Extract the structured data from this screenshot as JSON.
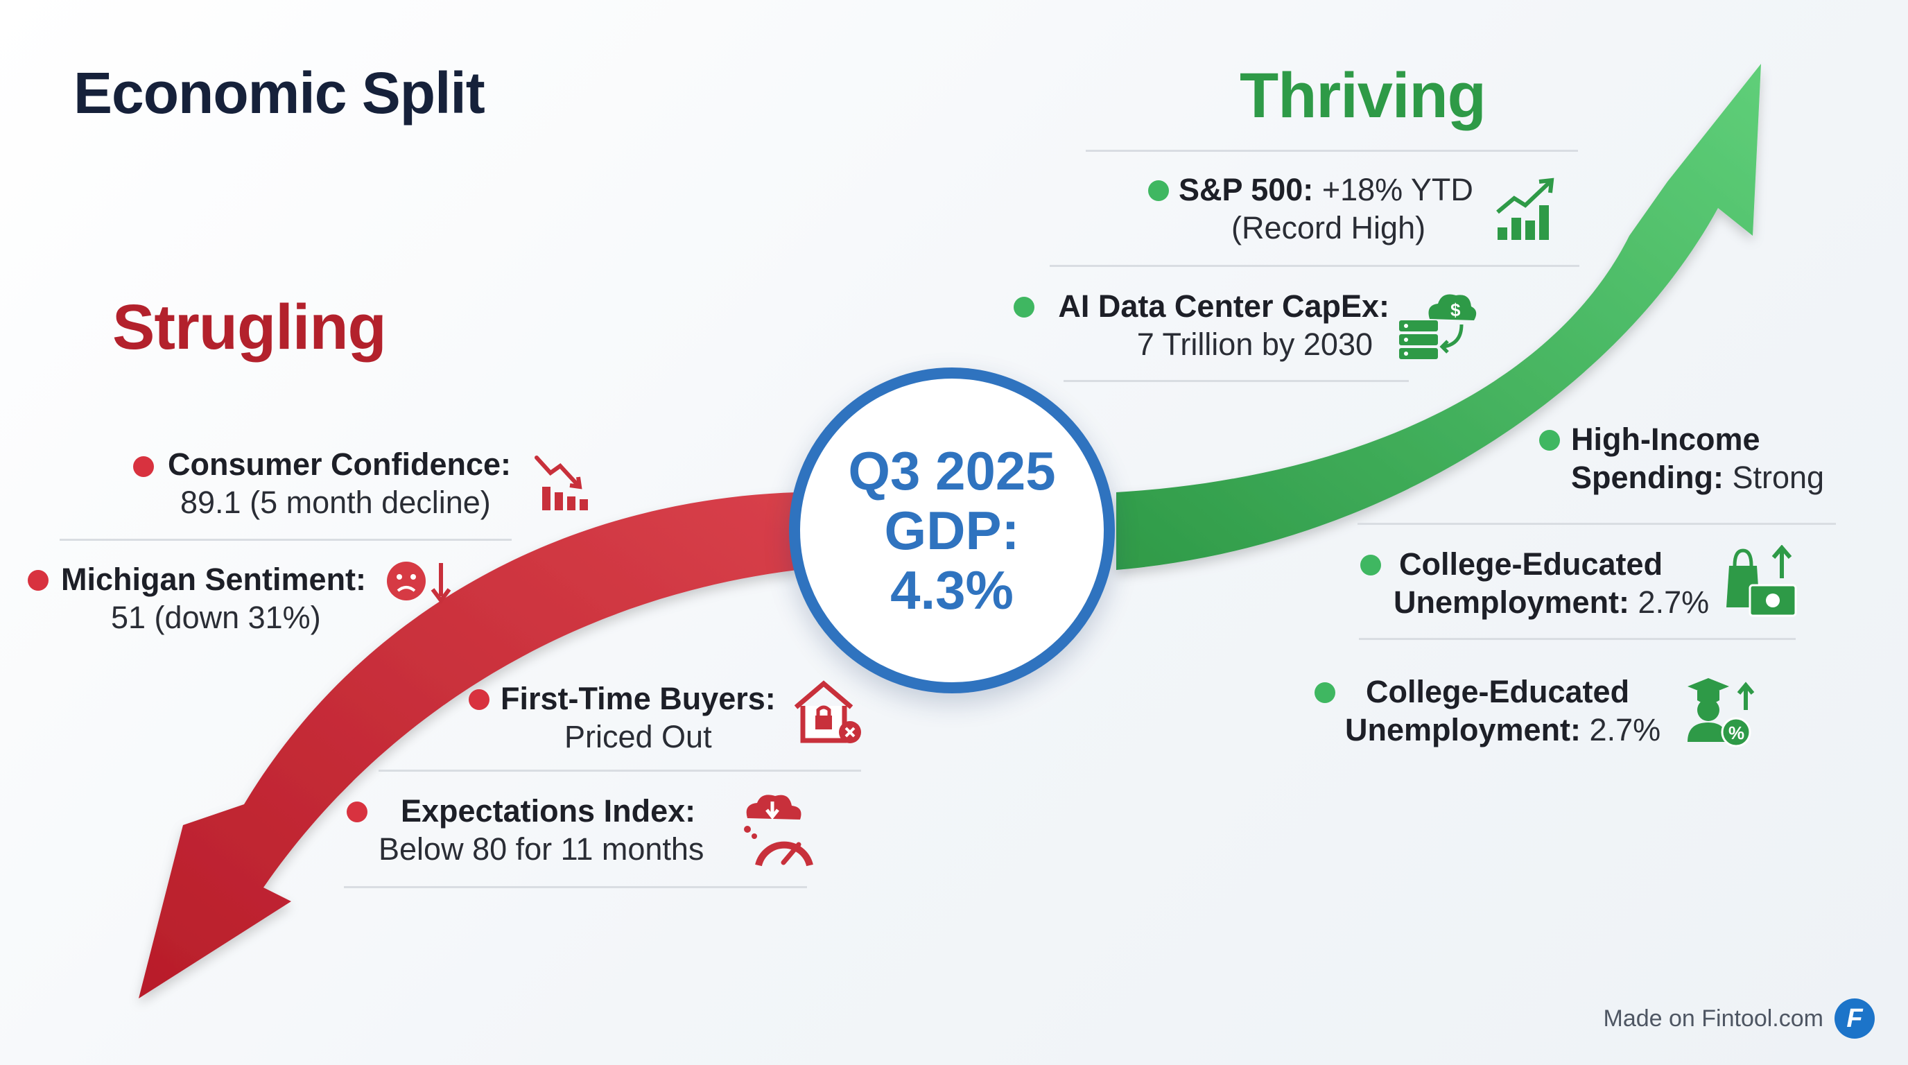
{
  "title": "Economic Split",
  "center": {
    "line1": "Q3 2025",
    "line2": "GDP:",
    "line3": "4.3%"
  },
  "struggling": {
    "heading": "Strugling",
    "items": [
      {
        "label": "Consumer Confidence:",
        "value": "89.1 (5 month decline)",
        "icon": "chart-decline-icon"
      },
      {
        "label": "Michigan Sentiment:",
        "value": "51 (down 31%)",
        "icon": "sad-face-down-arrow-icon"
      },
      {
        "label": "First-Time Buyers:",
        "value": "Priced Out",
        "icon": "locked-house-icon"
      },
      {
        "label": "Expectations Index:",
        "value": "Below 80 for 11 months",
        "icon": "cloud-gauge-icon"
      }
    ]
  },
  "thriving": {
    "heading": "Thriving",
    "items": [
      {
        "label": "S&P 500:",
        "value": "+18% YTD",
        "value2": "(Record High)",
        "icon": "bar-chart-rising-icon"
      },
      {
        "label": "AI Data Center CapEx:",
        "value": "7 Trillion by 2030",
        "icon": "server-cloud-dollar-icon"
      },
      {
        "label": "High-Income",
        "label2": "Spending:",
        "value": "Strong"
      },
      {
        "label": "College-Educated",
        "label2": "Unemployment:",
        "value": "2.7%",
        "icon": "shopping-bag-cash-icon"
      },
      {
        "label": "College-Educated",
        "label2": "Unemployment:",
        "value": "2.7%",
        "icon": "graduate-percent-icon"
      }
    ]
  },
  "colors": {
    "red": "#c8303b",
    "green": "#3fae58",
    "blue": "#2f73bf",
    "navy": "#16213a"
  },
  "footer": {
    "text": "Made on Fintool.com",
    "badge": "F"
  }
}
